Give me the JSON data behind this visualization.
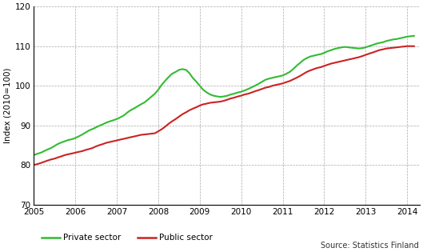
{
  "ylabel": "Index (2010=100)",
  "xlim": [
    2005.0,
    2014.3
  ],
  "ylim": [
    70,
    120
  ],
  "yticks": [
    70,
    80,
    90,
    100,
    110,
    120
  ],
  "xticks": [
    2005,
    2006,
    2007,
    2008,
    2009,
    2010,
    2011,
    2012,
    2013,
    2014
  ],
  "source_text": "Source: Statistics Finland",
  "legend_labels": [
    "Private sector",
    "Public sector"
  ],
  "private_color": "#33bb33",
  "public_color": "#cc2222",
  "private_x": [
    2005.0,
    2005.08,
    2005.17,
    2005.25,
    2005.33,
    2005.42,
    2005.5,
    2005.58,
    2005.67,
    2005.75,
    2005.83,
    2005.92,
    2006.0,
    2006.08,
    2006.17,
    2006.25,
    2006.33,
    2006.42,
    2006.5,
    2006.58,
    2006.67,
    2006.75,
    2006.83,
    2006.92,
    2007.0,
    2007.08,
    2007.17,
    2007.25,
    2007.33,
    2007.42,
    2007.5,
    2007.58,
    2007.67,
    2007.75,
    2007.83,
    2007.92,
    2008.0,
    2008.08,
    2008.17,
    2008.25,
    2008.33,
    2008.42,
    2008.5,
    2008.58,
    2008.67,
    2008.75,
    2008.83,
    2008.92,
    2009.0,
    2009.08,
    2009.17,
    2009.25,
    2009.33,
    2009.42,
    2009.5,
    2009.58,
    2009.67,
    2009.75,
    2009.83,
    2009.92,
    2010.0,
    2010.08,
    2010.17,
    2010.25,
    2010.33,
    2010.42,
    2010.5,
    2010.58,
    2010.67,
    2010.75,
    2010.83,
    2010.92,
    2011.0,
    2011.08,
    2011.17,
    2011.25,
    2011.33,
    2011.42,
    2011.5,
    2011.58,
    2011.67,
    2011.75,
    2011.83,
    2011.92,
    2012.0,
    2012.08,
    2012.17,
    2012.25,
    2012.33,
    2012.42,
    2012.5,
    2012.58,
    2012.67,
    2012.75,
    2012.83,
    2012.92,
    2013.0,
    2013.08,
    2013.17,
    2013.25,
    2013.33,
    2013.42,
    2013.5,
    2013.58,
    2013.67,
    2013.75,
    2013.83,
    2013.92,
    2014.0,
    2014.08,
    2014.17
  ],
  "private_y": [
    82.5,
    82.8,
    83.1,
    83.5,
    83.9,
    84.3,
    84.8,
    85.3,
    85.7,
    86.0,
    86.3,
    86.5,
    86.8,
    87.2,
    87.7,
    88.2,
    88.7,
    89.1,
    89.5,
    89.9,
    90.3,
    90.7,
    91.0,
    91.3,
    91.6,
    92.0,
    92.5,
    93.2,
    93.8,
    94.3,
    94.8,
    95.3,
    95.8,
    96.5,
    97.2,
    98.0,
    99.0,
    100.2,
    101.3,
    102.2,
    103.0,
    103.5,
    104.0,
    104.2,
    104.0,
    103.2,
    102.0,
    101.0,
    100.0,
    99.0,
    98.3,
    97.8,
    97.5,
    97.3,
    97.2,
    97.3,
    97.5,
    97.8,
    98.0,
    98.3,
    98.5,
    98.8,
    99.2,
    99.6,
    100.0,
    100.5,
    101.0,
    101.5,
    101.8,
    102.0,
    102.2,
    102.4,
    102.6,
    103.0,
    103.5,
    104.2,
    105.0,
    105.8,
    106.5,
    107.0,
    107.4,
    107.6,
    107.8,
    108.0,
    108.3,
    108.7,
    109.0,
    109.3,
    109.5,
    109.7,
    109.8,
    109.7,
    109.6,
    109.5,
    109.4,
    109.5,
    109.7,
    110.0,
    110.3,
    110.6,
    110.8,
    111.0,
    111.3,
    111.5,
    111.7,
    111.8,
    112.0,
    112.2,
    112.4,
    112.5,
    112.6
  ],
  "public_x": [
    2005.0,
    2005.08,
    2005.17,
    2005.25,
    2005.33,
    2005.42,
    2005.5,
    2005.58,
    2005.67,
    2005.75,
    2005.83,
    2005.92,
    2006.0,
    2006.08,
    2006.17,
    2006.25,
    2006.33,
    2006.42,
    2006.5,
    2006.58,
    2006.67,
    2006.75,
    2006.83,
    2006.92,
    2007.0,
    2007.08,
    2007.17,
    2007.25,
    2007.33,
    2007.42,
    2007.5,
    2007.58,
    2007.67,
    2007.75,
    2007.83,
    2007.92,
    2008.0,
    2008.08,
    2008.17,
    2008.25,
    2008.33,
    2008.42,
    2008.5,
    2008.58,
    2008.67,
    2008.75,
    2008.83,
    2008.92,
    2009.0,
    2009.08,
    2009.17,
    2009.25,
    2009.33,
    2009.42,
    2009.5,
    2009.58,
    2009.67,
    2009.75,
    2009.83,
    2009.92,
    2010.0,
    2010.08,
    2010.17,
    2010.25,
    2010.33,
    2010.42,
    2010.5,
    2010.58,
    2010.67,
    2010.75,
    2010.83,
    2010.92,
    2011.0,
    2011.08,
    2011.17,
    2011.25,
    2011.33,
    2011.42,
    2011.5,
    2011.58,
    2011.67,
    2011.75,
    2011.83,
    2011.92,
    2012.0,
    2012.08,
    2012.17,
    2012.25,
    2012.33,
    2012.42,
    2012.5,
    2012.58,
    2012.67,
    2012.75,
    2012.83,
    2012.92,
    2013.0,
    2013.08,
    2013.17,
    2013.25,
    2013.33,
    2013.42,
    2013.5,
    2013.58,
    2013.67,
    2013.75,
    2013.83,
    2013.92,
    2014.0,
    2014.08,
    2014.17
  ],
  "public_y": [
    80.0,
    80.2,
    80.5,
    80.8,
    81.1,
    81.4,
    81.6,
    81.9,
    82.2,
    82.5,
    82.7,
    82.9,
    83.1,
    83.3,
    83.5,
    83.8,
    84.0,
    84.3,
    84.7,
    85.0,
    85.3,
    85.6,
    85.8,
    86.0,
    86.2,
    86.4,
    86.6,
    86.8,
    87.0,
    87.2,
    87.4,
    87.6,
    87.7,
    87.8,
    87.9,
    88.0,
    88.5,
    89.0,
    89.7,
    90.4,
    91.0,
    91.6,
    92.2,
    92.8,
    93.3,
    93.8,
    94.2,
    94.6,
    95.0,
    95.3,
    95.5,
    95.7,
    95.8,
    95.9,
    96.0,
    96.2,
    96.5,
    96.8,
    97.0,
    97.3,
    97.5,
    97.8,
    98.0,
    98.3,
    98.6,
    98.9,
    99.2,
    99.5,
    99.7,
    100.0,
    100.2,
    100.4,
    100.6,
    100.9,
    101.2,
    101.6,
    102.0,
    102.5,
    103.0,
    103.5,
    103.9,
    104.2,
    104.5,
    104.7,
    105.0,
    105.3,
    105.6,
    105.8,
    106.0,
    106.2,
    106.4,
    106.6,
    106.8,
    107.0,
    107.2,
    107.5,
    107.8,
    108.1,
    108.4,
    108.7,
    109.0,
    109.2,
    109.4,
    109.5,
    109.6,
    109.7,
    109.8,
    109.9,
    110.0,
    110.0,
    110.0
  ]
}
